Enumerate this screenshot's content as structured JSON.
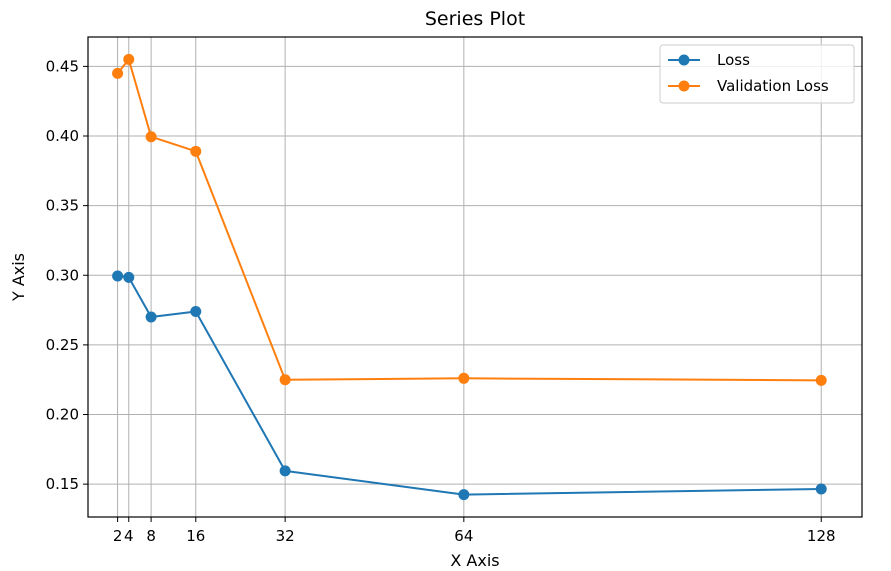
{
  "chart_data": {
    "type": "line",
    "title": "Series Plot",
    "xlabel": "X Axis",
    "ylabel": "Y Axis",
    "x": [
      2,
      4,
      8,
      16,
      32,
      64,
      128
    ],
    "xticks": [
      2,
      4,
      8,
      16,
      32,
      64,
      128
    ],
    "yticks": [
      0.15,
      0.2,
      0.25,
      0.3,
      0.35,
      0.4,
      0.45
    ],
    "ytick_labels": [
      "0.15",
      "0.20",
      "0.25",
      "0.30",
      "0.35",
      "0.40",
      "0.45"
    ],
    "xlim": [
      -3.3,
      135.3
    ],
    "ylim": [
      0.1264,
      0.4711
    ],
    "grid": true,
    "legend_position": "top-right",
    "series": [
      {
        "name": "Loss",
        "color": "#1f77b4",
        "marker": "circle",
        "values": [
          0.2995,
          0.2985,
          0.27,
          0.274,
          0.1595,
          0.1425,
          0.1465
        ]
      },
      {
        "name": "Validation Loss",
        "color": "#ff7f0e",
        "marker": "circle",
        "values": [
          0.445,
          0.455,
          0.3995,
          0.389,
          0.225,
          0.226,
          0.2245
        ]
      }
    ]
  }
}
